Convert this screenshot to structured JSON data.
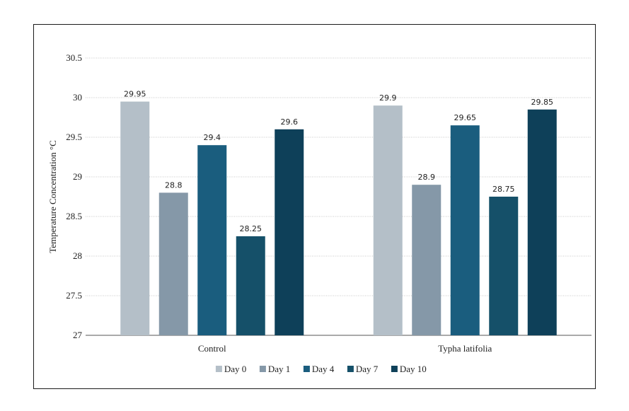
{
  "chart_data": {
    "type": "bar",
    "ylabel": "Temperature Concentration °C",
    "ylim": [
      27,
      30.5
    ],
    "yticks": [
      "27",
      "27.5",
      "28",
      "28.5",
      "29",
      "29.5",
      "30",
      "30.5"
    ],
    "grid": true,
    "legend_position": "bottom",
    "categories": [
      "Control",
      "Typha latifolia"
    ],
    "series": [
      {
        "name": "Day 0",
        "color": "#b4bfc8",
        "values": [
          29.95,
          29.9
        ],
        "labels": [
          "29.95",
          "29.9"
        ]
      },
      {
        "name": "Day 1",
        "color": "#8598a8",
        "values": [
          28.8,
          28.9
        ],
        "labels": [
          "28.8",
          "28.9"
        ]
      },
      {
        "name": "Day 4",
        "color": "#1a5d7e",
        "values": [
          29.4,
          29.65
        ],
        "labels": [
          "29.4",
          "29.65"
        ]
      },
      {
        "name": "Day 7",
        "color": "#155069",
        "values": [
          28.25,
          28.75
        ],
        "labels": [
          "28.25",
          "28.75"
        ]
      },
      {
        "name": "Day 10",
        "color": "#0e4059",
        "values": [
          29.6,
          29.85
        ],
        "labels": [
          "29.6",
          "29.85"
        ]
      }
    ]
  }
}
